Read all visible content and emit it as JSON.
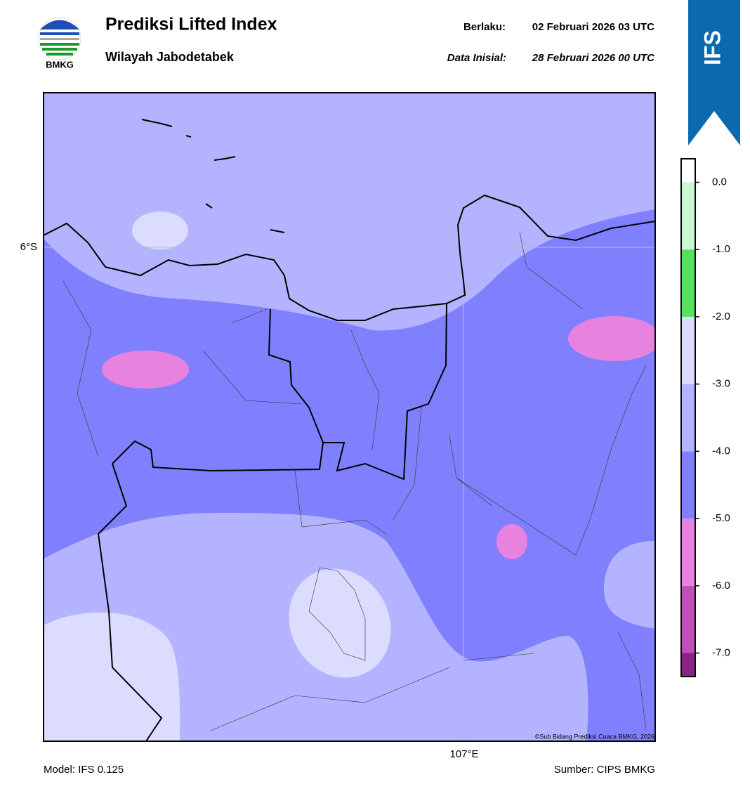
{
  "header": {
    "logo_text": "BMKG",
    "title": "Prediksi Lifted Index",
    "subtitle": "Wilayah Jabodetabek",
    "valid_label": "Berlaku:",
    "valid_time": "02 Februari 2026 03 UTC",
    "init_label": "Data Inisial:",
    "init_time": "28 Februari 2026 00 UTC",
    "badge": "IFS"
  },
  "map": {
    "lat_label": "6°S",
    "lon_label": "107°E",
    "credit": "©Sub Bidang Prediksi Cuaca BMKG, 2026"
  },
  "colorbar": {
    "lim": [
      -7.35,
      0.35
    ],
    "boundaries": [
      -7,
      -6,
      -5,
      -4,
      -3,
      -2,
      -1,
      0
    ],
    "colors": [
      "#8b2387",
      "#c04fb8",
      "#e882e0",
      "#8080ff",
      "#b3b3ff",
      "#dcdcff",
      "#55e060",
      "#c8f8d2",
      "#ffffff"
    ],
    "ticks": [
      {
        "value": 0,
        "label": "0.0"
      },
      {
        "value": -1,
        "label": "-1.0"
      },
      {
        "value": -2,
        "label": "-2.0"
      },
      {
        "value": -3,
        "label": "-3.0"
      },
      {
        "value": -4,
        "label": "-4.0"
      },
      {
        "value": -5,
        "label": "-5.0"
      },
      {
        "value": -6,
        "label": "-6.0"
      },
      {
        "value": -7,
        "label": "-7.0"
      }
    ]
  },
  "footer": {
    "model": "Model: IFS 0.125",
    "source": "Sumber: CIPS BMKG"
  }
}
